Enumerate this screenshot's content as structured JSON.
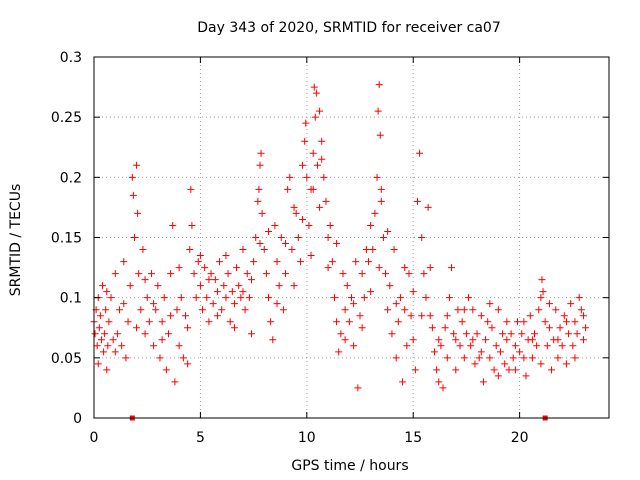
{
  "chart_data": {
    "type": "scatter",
    "title": "Day 343 of 2020, SRMTID for receiver ca07",
    "xlabel": "GPS time / hours",
    "ylabel": "SRMTID / TECUs",
    "xlim": [
      0,
      24.2
    ],
    "ylim": [
      0,
      0.3
    ],
    "x_ticks": [
      "0",
      "5",
      "10",
      "15",
      "20"
    ],
    "y_ticks": [
      "0",
      "0.05",
      "0.1",
      "0.15",
      "0.2",
      "0.25",
      "0.3"
    ],
    "grid": true,
    "marker": "plus",
    "color": "#ff0000",
    "x_tick_values": [
      0,
      5,
      10,
      15,
      20
    ],
    "y_tick_values": [
      0,
      0.05,
      0.1,
      0.15,
      0.2,
      0.25,
      0.3
    ],
    "gap_markers_x": [
      1.8,
      21.2
    ],
    "series": [
      {
        "name": "SRMTID",
        "points": [
          [
            0.0,
            0.08
          ],
          [
            0.05,
            0.07
          ],
          [
            0.1,
            0.09
          ],
          [
            0.15,
            0.06
          ],
          [
            0.2,
            0.1
          ],
          [
            0.25,
            0.075
          ],
          [
            0.3,
            0.085
          ],
          [
            0.35,
            0.065
          ],
          [
            0.4,
            0.11
          ],
          [
            0.45,
            0.055
          ],
          [
            0.5,
            0.07
          ],
          [
            0.55,
            0.09
          ],
          [
            0.6,
            0.04
          ],
          [
            0.65,
            0.06
          ],
          [
            0.7,
            0.08
          ],
          [
            0.8,
            0.1
          ],
          [
            0.9,
            0.065
          ],
          [
            1.0,
            0.12
          ],
          [
            1.1,
            0.07
          ],
          [
            1.2,
            0.09
          ],
          [
            1.3,
            0.06
          ],
          [
            1.4,
            0.13
          ],
          [
            1.5,
            0.05
          ],
          [
            1.6,
            0.08
          ],
          [
            1.7,
            0.11
          ],
          [
            1.8,
            0.2
          ],
          [
            1.85,
            0.185
          ],
          [
            1.9,
            0.15
          ],
          [
            2.0,
            0.21
          ],
          [
            2.05,
            0.17
          ],
          [
            2.1,
            0.12
          ],
          [
            2.2,
            0.09
          ],
          [
            2.3,
            0.14
          ],
          [
            2.4,
            0.07
          ],
          [
            2.5,
            0.1
          ],
          [
            2.6,
            0.08
          ],
          [
            2.7,
            0.12
          ],
          [
            2.8,
            0.06
          ],
          [
            2.9,
            0.09
          ],
          [
            3.0,
            0.11
          ],
          [
            3.1,
            0.05
          ],
          [
            3.2,
            0.08
          ],
          [
            3.3,
            0.1
          ],
          [
            3.4,
            0.04
          ],
          [
            3.5,
            0.07
          ],
          [
            3.6,
            0.12
          ],
          [
            3.7,
            0.16
          ],
          [
            3.8,
            0.03
          ],
          [
            3.9,
            0.09
          ],
          [
            4.0,
            0.06
          ],
          [
            4.1,
            0.1
          ],
          [
            4.2,
            0.05
          ],
          [
            4.3,
            0.085
          ],
          [
            4.4,
            0.045
          ],
          [
            4.5,
            0.14
          ],
          [
            4.55,
            0.19
          ],
          [
            4.6,
            0.16
          ],
          [
            4.7,
            0.12
          ],
          [
            4.8,
            0.1
          ],
          [
            4.9,
            0.13
          ],
          [
            5.0,
            0.11
          ],
          [
            5.1,
            0.09
          ],
          [
            5.2,
            0.125
          ],
          [
            5.3,
            0.1
          ],
          [
            5.4,
            0.08
          ],
          [
            5.5,
            0.12
          ],
          [
            5.6,
            0.095
          ],
          [
            5.7,
            0.115
          ],
          [
            5.8,
            0.105
          ],
          [
            5.9,
            0.13
          ],
          [
            6.0,
            0.09
          ],
          [
            6.1,
            0.11
          ],
          [
            6.2,
            0.1
          ],
          [
            6.3,
            0.12
          ],
          [
            6.4,
            0.08
          ],
          [
            6.5,
            0.105
          ],
          [
            6.6,
            0.095
          ],
          [
            6.7,
            0.125
          ],
          [
            6.8,
            0.11
          ],
          [
            6.9,
            0.1
          ],
          [
            7.0,
            0.14
          ],
          [
            7.1,
            0.09
          ],
          [
            7.2,
            0.12
          ],
          [
            7.3,
            0.1
          ],
          [
            7.4,
            0.07
          ],
          [
            7.5,
            0.13
          ],
          [
            7.6,
            0.15
          ],
          [
            7.7,
            0.18
          ],
          [
            7.75,
            0.19
          ],
          [
            7.8,
            0.21
          ],
          [
            7.85,
            0.22
          ],
          [
            7.9,
            0.17
          ],
          [
            8.0,
            0.14
          ],
          [
            8.1,
            0.12
          ],
          [
            8.2,
            0.1
          ],
          [
            8.3,
            0.08
          ],
          [
            8.4,
            0.065
          ],
          [
            8.5,
            0.16
          ],
          [
            8.6,
            0.13
          ],
          [
            8.7,
            0.11
          ],
          [
            8.8,
            0.15
          ],
          [
            8.9,
            0.09
          ],
          [
            9.0,
            0.12
          ],
          [
            9.1,
            0.19
          ],
          [
            9.2,
            0.2
          ],
          [
            9.3,
            0.14
          ],
          [
            9.4,
            0.11
          ],
          [
            9.5,
            0.17
          ],
          [
            9.6,
            0.15
          ],
          [
            9.7,
            0.13
          ],
          [
            9.8,
            0.21
          ],
          [
            9.9,
            0.23
          ],
          [
            9.95,
            0.245
          ],
          [
            10.0,
            0.2
          ],
          [
            10.1,
            0.16
          ],
          [
            10.2,
            0.19
          ],
          [
            10.3,
            0.22
          ],
          [
            10.35,
            0.275
          ],
          [
            10.4,
            0.25
          ],
          [
            10.45,
            0.27
          ],
          [
            10.5,
            0.21
          ],
          [
            10.6,
            0.255
          ],
          [
            10.7,
            0.23
          ],
          [
            10.8,
            0.2
          ],
          [
            10.9,
            0.18
          ],
          [
            11.0,
            0.15
          ],
          [
            11.1,
            0.16
          ],
          [
            11.2,
            0.13
          ],
          [
            11.3,
            0.1
          ],
          [
            11.4,
            0.08
          ],
          [
            11.5,
            0.055
          ],
          [
            11.6,
            0.07
          ],
          [
            11.7,
            0.12
          ],
          [
            11.8,
            0.09
          ],
          [
            11.9,
            0.11
          ],
          [
            12.0,
            0.08
          ],
          [
            12.1,
            0.1
          ],
          [
            12.2,
            0.06
          ],
          [
            12.3,
            0.13
          ],
          [
            12.4,
            0.025
          ],
          [
            12.5,
            0.085
          ],
          [
            12.6,
            0.12
          ],
          [
            12.7,
            0.1
          ],
          [
            12.8,
            0.14
          ],
          [
            12.9,
            0.13
          ],
          [
            13.0,
            0.16
          ],
          [
            13.1,
            0.14
          ],
          [
            13.2,
            0.17
          ],
          [
            13.3,
            0.2
          ],
          [
            13.35,
            0.255
          ],
          [
            13.4,
            0.277
          ],
          [
            13.45,
            0.235
          ],
          [
            13.5,
            0.18
          ],
          [
            13.6,
            0.15
          ],
          [
            13.7,
            0.12
          ],
          [
            13.8,
            0.09
          ],
          [
            13.9,
            0.11
          ],
          [
            14.0,
            0.07
          ],
          [
            14.1,
            0.14
          ],
          [
            14.2,
            0.05
          ],
          [
            14.3,
            0.08
          ],
          [
            14.4,
            0.1
          ],
          [
            14.5,
            0.03
          ],
          [
            14.6,
            0.09
          ],
          [
            14.7,
            0.06
          ],
          [
            14.8,
            0.12
          ],
          [
            14.9,
            0.085
          ],
          [
            15.0,
            0.065
          ],
          [
            15.1,
            0.04
          ],
          [
            15.2,
            0.18
          ],
          [
            15.3,
            0.22
          ],
          [
            15.4,
            0.15
          ],
          [
            15.5,
            0.12
          ],
          [
            15.6,
            0.1
          ],
          [
            15.7,
            0.175
          ],
          [
            15.8,
            0.085
          ],
          [
            15.9,
            0.075
          ],
          [
            16.0,
            0.055
          ],
          [
            16.1,
            0.04
          ],
          [
            16.2,
            0.03
          ],
          [
            16.3,
            0.06
          ],
          [
            16.4,
            0.025
          ],
          [
            16.5,
            0.075
          ],
          [
            16.6,
            0.05
          ],
          [
            16.7,
            0.1
          ],
          [
            16.8,
            0.125
          ],
          [
            16.9,
            0.07
          ],
          [
            17.0,
            0.04
          ],
          [
            17.1,
            0.09
          ],
          [
            17.2,
            0.06
          ],
          [
            17.3,
            0.08
          ],
          [
            17.4,
            0.05
          ],
          [
            17.5,
            0.07
          ],
          [
            17.6,
            0.1
          ],
          [
            17.7,
            0.06
          ],
          [
            17.8,
            0.09
          ],
          [
            17.9,
            0.045
          ],
          [
            18.0,
            0.07
          ],
          [
            18.1,
            0.05
          ],
          [
            18.2,
            0.085
          ],
          [
            18.3,
            0.03
          ],
          [
            18.4,
            0.065
          ],
          [
            18.5,
            0.08
          ],
          [
            18.6,
            0.05
          ],
          [
            18.7,
            0.075
          ],
          [
            18.8,
            0.04
          ],
          [
            18.9,
            0.06
          ],
          [
            19.0,
            0.09
          ],
          [
            19.1,
            0.055
          ],
          [
            19.2,
            0.07
          ],
          [
            19.3,
            0.045
          ],
          [
            19.4,
            0.065
          ],
          [
            19.5,
            0.04
          ],
          [
            19.6,
            0.07
          ],
          [
            19.7,
            0.05
          ],
          [
            19.8,
            0.06
          ],
          [
            19.9,
            0.08
          ],
          [
            20.0,
            0.055
          ],
          [
            20.1,
            0.07
          ],
          [
            20.2,
            0.05
          ],
          [
            20.3,
            0.035
          ],
          [
            20.4,
            0.065
          ],
          [
            20.5,
            0.085
          ],
          [
            20.6,
            0.05
          ],
          [
            20.7,
            0.07
          ],
          [
            20.8,
            0.06
          ],
          [
            20.9,
            0.09
          ],
          [
            21.0,
            0.1
          ],
          [
            21.05,
            0.115
          ],
          [
            21.1,
            0.105
          ],
          [
            21.2,
            0.08
          ],
          [
            21.3,
            0.06
          ],
          [
            21.4,
            0.075
          ],
          [
            21.5,
            0.04
          ],
          [
            21.6,
            0.065
          ],
          [
            21.7,
            0.09
          ],
          [
            21.8,
            0.05
          ],
          [
            21.9,
            0.075
          ],
          [
            22.0,
            0.06
          ],
          [
            22.1,
            0.085
          ],
          [
            22.2,
            0.045
          ],
          [
            22.3,
            0.07
          ],
          [
            22.4,
            0.095
          ],
          [
            22.5,
            0.06
          ],
          [
            22.6,
            0.08
          ],
          [
            22.7,
            0.07
          ],
          [
            22.8,
            0.1
          ],
          [
            22.9,
            0.09
          ],
          [
            23.0,
            0.085
          ],
          [
            23.1,
            0.075
          ],
          [
            0.2,
            0.045
          ],
          [
            0.6,
            0.105
          ],
          [
            1.0,
            0.055
          ],
          [
            1.4,
            0.095
          ],
          [
            2.0,
            0.075
          ],
          [
            2.4,
            0.115
          ],
          [
            2.8,
            0.095
          ],
          [
            3.2,
            0.065
          ],
          [
            3.6,
            0.085
          ],
          [
            4.0,
            0.125
          ],
          [
            4.4,
            0.075
          ],
          [
            5.0,
            0.135
          ],
          [
            5.4,
            0.115
          ],
          [
            5.8,
            0.085
          ],
          [
            6.2,
            0.135
          ],
          [
            6.6,
            0.075
          ],
          [
            7.0,
            0.105
          ],
          [
            7.4,
            0.115
          ],
          [
            7.8,
            0.145
          ],
          [
            8.2,
            0.155
          ],
          [
            8.6,
            0.095
          ],
          [
            9.0,
            0.145
          ],
          [
            9.4,
            0.175
          ],
          [
            9.8,
            0.165
          ],
          [
            10.2,
            0.135
          ],
          [
            10.6,
            0.175
          ],
          [
            11.0,
            0.125
          ],
          [
            11.4,
            0.145
          ],
          [
            11.8,
            0.065
          ],
          [
            12.2,
            0.095
          ],
          [
            12.6,
            0.075
          ],
          [
            13.0,
            0.105
          ],
          [
            13.4,
            0.125
          ],
          [
            13.8,
            0.155
          ],
          [
            14.2,
            0.095
          ],
          [
            14.6,
            0.125
          ],
          [
            15.0,
            0.105
          ],
          [
            15.4,
            0.085
          ],
          [
            15.8,
            0.125
          ],
          [
            16.2,
            0.065
          ],
          [
            16.6,
            0.085
          ],
          [
            17.0,
            0.065
          ],
          [
            17.4,
            0.09
          ],
          [
            17.8,
            0.065
          ],
          [
            18.2,
            0.055
          ],
          [
            18.6,
            0.095
          ],
          [
            19.0,
            0.035
          ],
          [
            19.4,
            0.08
          ],
          [
            19.8,
            0.04
          ],
          [
            20.2,
            0.08
          ],
          [
            20.6,
            0.065
          ],
          [
            21.0,
            0.045
          ],
          [
            21.4,
            0.095
          ],
          [
            21.8,
            0.065
          ],
          [
            22.2,
            0.08
          ],
          [
            22.6,
            0.05
          ],
          [
            23.0,
            0.065
          ],
          [
            10.3,
            0.19
          ],
          [
            10.7,
            0.215
          ],
          [
            13.5,
            0.19
          ]
        ]
      }
    ]
  }
}
